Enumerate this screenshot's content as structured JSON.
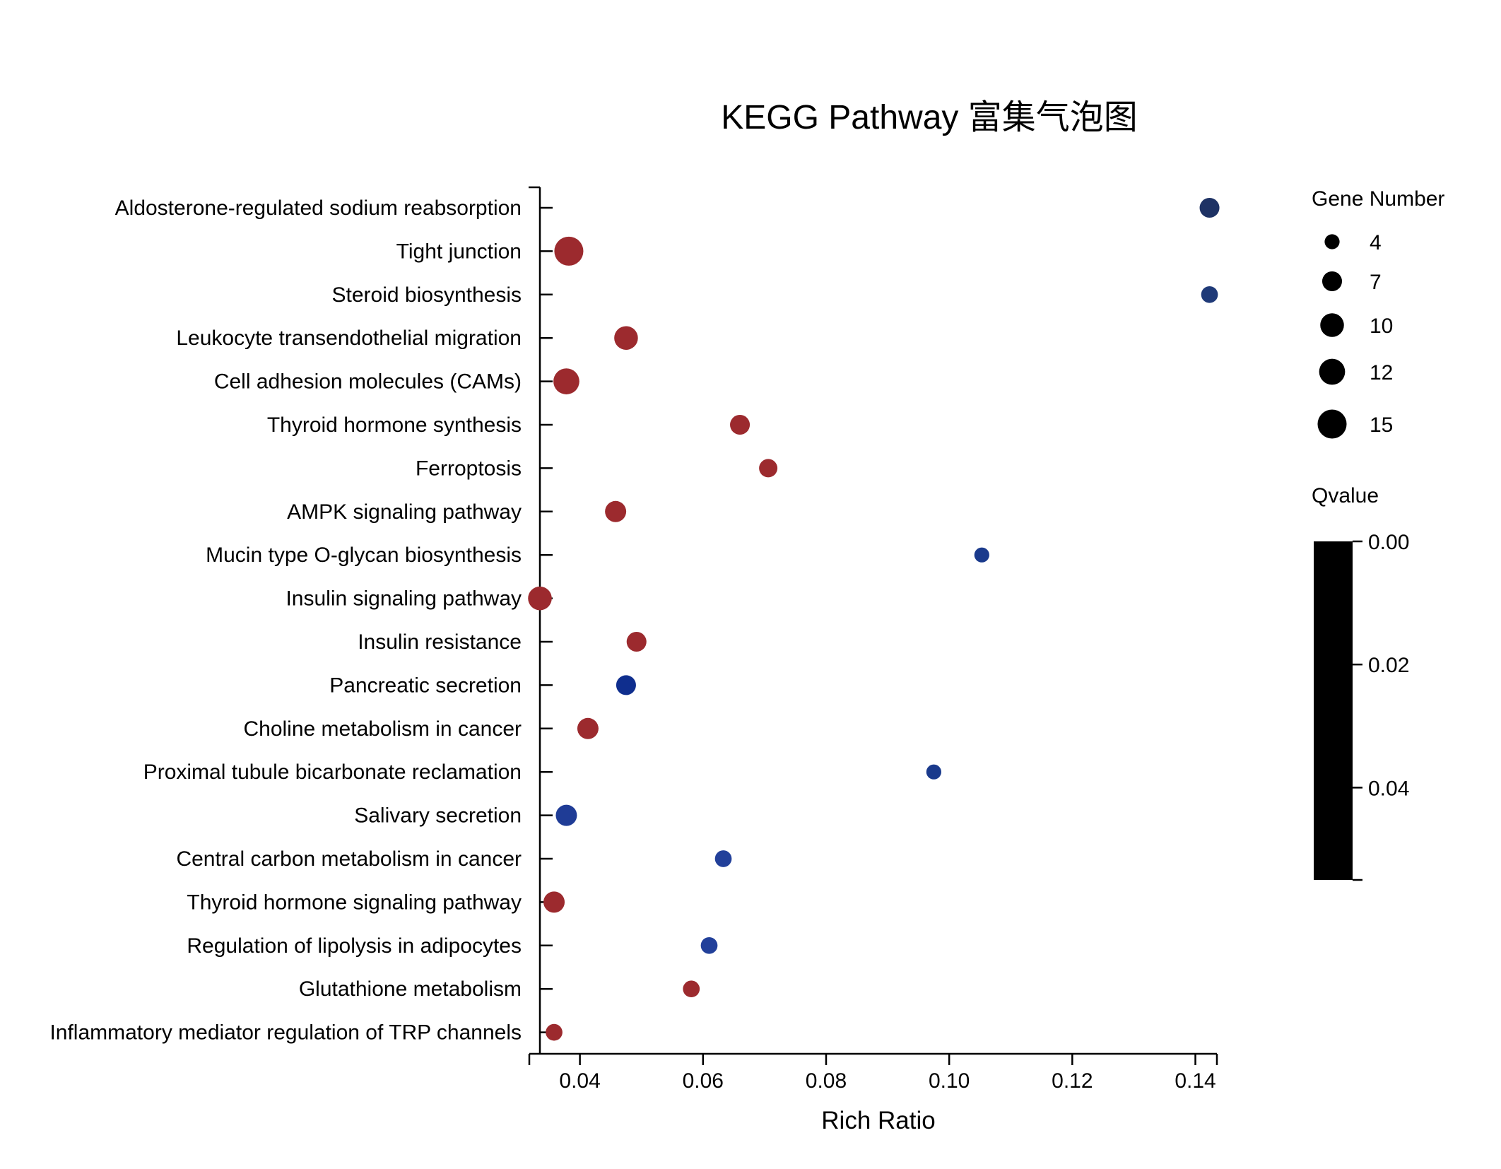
{
  "chart_data": {
    "type": "scatter",
    "title": "KEGG Pathway 富集气泡图",
    "xlabel": "Rich Ratio",
    "ylabel": "",
    "xlim": [
      0.0335,
      0.1435
    ],
    "xticks": [
      0.04,
      0.06,
      0.08,
      0.1,
      0.12,
      0.14
    ],
    "xtick_labels": [
      "0.04",
      "0.06",
      "0.08",
      "0.10",
      "0.12",
      "0.14"
    ],
    "grid": false,
    "categories": [
      "Aldosterone-regulated sodium reabsorption",
      "Tight junction",
      "Steroid biosynthesis",
      "Leukocyte transendothelial migration",
      "Cell adhesion molecules (CAMs)",
      "Thyroid hormone synthesis",
      "Ferroptosis",
      "AMPK signaling pathway",
      "Mucin type O-glycan biosynthesis",
      "Insulin signaling pathway",
      "Insulin resistance",
      "Pancreatic secretion",
      "Choline metabolism in cancer",
      "Proximal tubule bicarbonate reclamation",
      "Salivary secretion",
      "Central carbon metabolism in cancer",
      "Thyroid hormone signaling pathway",
      "Regulation of lipolysis in adipocytes",
      "Glutathione metabolism",
      "Inflammatory mediator regulation of TRP channels"
    ],
    "points": [
      {
        "pathway": "Aldosterone-regulated sodium reabsorption",
        "rich_ratio": 0.1423,
        "gene_number": 7,
        "color": "#1e3264"
      },
      {
        "pathway": "Tight junction",
        "rich_ratio": 0.0382,
        "gene_number": 15,
        "color": "#9c2a2e"
      },
      {
        "pathway": "Steroid biosynthesis",
        "rich_ratio": 0.1423,
        "gene_number": 5,
        "color": "#1f3a78"
      },
      {
        "pathway": "Leukocyte transendothelial migration",
        "rich_ratio": 0.0475,
        "gene_number": 10,
        "color": "#9c2a2e"
      },
      {
        "pathway": "Cell adhesion molecules (CAMs)",
        "rich_ratio": 0.0378,
        "gene_number": 12,
        "color": "#9c2a2e"
      },
      {
        "pathway": "Thyroid hormone synthesis",
        "rich_ratio": 0.066,
        "gene_number": 7,
        "color": "#9c2a2e"
      },
      {
        "pathway": "Ferroptosis",
        "rich_ratio": 0.0706,
        "gene_number": 6,
        "color": "#9c2a2e"
      },
      {
        "pathway": "AMPK signaling pathway",
        "rich_ratio": 0.0458,
        "gene_number": 8,
        "color": "#9c2a2e"
      },
      {
        "pathway": "Mucin type O-glycan biosynthesis",
        "rich_ratio": 0.1053,
        "gene_number": 4,
        "color": "#1a3a8c"
      },
      {
        "pathway": "Insulin signaling pathway",
        "rich_ratio": 0.0335,
        "gene_number": 10,
        "color": "#9c2a2e"
      },
      {
        "pathway": "Insulin resistance",
        "rich_ratio": 0.0492,
        "gene_number": 7,
        "color": "#9c2a2e"
      },
      {
        "pathway": "Pancreatic secretion",
        "rich_ratio": 0.0475,
        "gene_number": 7,
        "color": "#0f2e8e"
      },
      {
        "pathway": "Choline metabolism in cancer",
        "rich_ratio": 0.0413,
        "gene_number": 8,
        "color": "#9c2a2e"
      },
      {
        "pathway": "Proximal tubule bicarbonate reclamation",
        "rich_ratio": 0.0975,
        "gene_number": 4,
        "color": "#1a3a8c"
      },
      {
        "pathway": "Salivary secretion",
        "rich_ratio": 0.0378,
        "gene_number": 8,
        "color": "#1f3c96"
      },
      {
        "pathway": "Central carbon metabolism in cancer",
        "rich_ratio": 0.0633,
        "gene_number": 5,
        "color": "#22409a"
      },
      {
        "pathway": "Thyroid hormone signaling pathway",
        "rich_ratio": 0.0358,
        "gene_number": 8,
        "color": "#9c2a2e"
      },
      {
        "pathway": "Regulation of lipolysis in adipocytes",
        "rich_ratio": 0.061,
        "gene_number": 5,
        "color": "#22409a"
      },
      {
        "pathway": "Glutathione metabolism",
        "rich_ratio": 0.0581,
        "gene_number": 5,
        "color": "#9c2a2e"
      },
      {
        "pathway": "Inflammatory mediator regulation of TRP channels",
        "rich_ratio": 0.0358,
        "gene_number": 5,
        "color": "#9c2a2e"
      }
    ],
    "size_legend": {
      "title": "Gene Number",
      "values": [
        4,
        7,
        10,
        12,
        15
      ],
      "labels": [
        "4",
        "7",
        "10",
        "12",
        "15"
      ],
      "placement": "right"
    },
    "color_legend": {
      "title": "Qvalue",
      "range": [
        0.0,
        0.055
      ],
      "ticks": [
        0.0,
        0.02,
        0.04
      ],
      "tick_labels": [
        "0.00",
        "0.02",
        "0.04"
      ],
      "bar_color": "#000000",
      "placement": "right"
    }
  }
}
